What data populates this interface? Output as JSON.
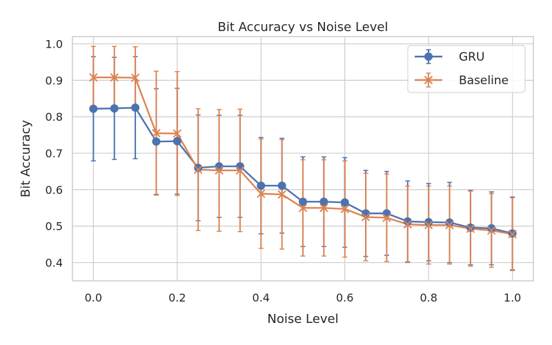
{
  "chart_data": {
    "type": "line",
    "title": "Bit Accuracy vs Noise Level",
    "xlabel": "Noise Level",
    "ylabel": "Bit Accuracy",
    "xlim": [
      -0.05,
      1.05
    ],
    "ylim": [
      0.35,
      1.02
    ],
    "xticks": [
      0.0,
      0.2,
      0.4,
      0.6,
      0.8,
      1.0
    ],
    "xtick_labels": [
      "0.0",
      "0.2",
      "0.4",
      "0.6",
      "0.8",
      "1.0"
    ],
    "yticks": [
      0.4,
      0.5,
      0.6,
      0.7,
      0.8,
      0.9,
      1.0
    ],
    "ytick_labels": [
      "0.4",
      "0.5",
      "0.6",
      "0.7",
      "0.8",
      "0.9",
      "1.0"
    ],
    "grid": true,
    "legend_position": "top-right",
    "x": [
      0.0,
      0.05,
      0.1,
      0.15,
      0.2,
      0.25,
      0.3,
      0.35,
      0.4,
      0.45,
      0.5,
      0.55,
      0.6,
      0.65,
      0.7,
      0.75,
      0.8,
      0.85,
      0.9,
      0.95,
      1.0
    ],
    "series": [
      {
        "name": "GRU",
        "color": "#4c72b0",
        "marker": "circle",
        "values": [
          0.822,
          0.823,
          0.825,
          0.732,
          0.733,
          0.66,
          0.664,
          0.664,
          0.611,
          0.611,
          0.567,
          0.567,
          0.565,
          0.535,
          0.535,
          0.513,
          0.511,
          0.51,
          0.496,
          0.494,
          0.48
        ],
        "yerr": [
          0.143,
          0.14,
          0.14,
          0.145,
          0.145,
          0.145,
          0.14,
          0.14,
          0.132,
          0.13,
          0.123,
          0.123,
          0.123,
          0.118,
          0.115,
          0.111,
          0.106,
          0.11,
          0.102,
          0.1,
          0.1
        ]
      },
      {
        "name": "Baseline",
        "color": "#dd8452",
        "marker": "x",
        "values": [
          0.908,
          0.908,
          0.907,
          0.755,
          0.754,
          0.655,
          0.653,
          0.653,
          0.589,
          0.587,
          0.55,
          0.55,
          0.547,
          0.525,
          0.523,
          0.505,
          0.503,
          0.503,
          0.493,
          0.488,
          0.478
        ],
        "yerr": [
          0.085,
          0.085,
          0.085,
          0.17,
          0.17,
          0.167,
          0.167,
          0.168,
          0.15,
          0.15,
          0.132,
          0.132,
          0.132,
          0.12,
          0.12,
          0.105,
          0.107,
          0.107,
          0.103,
          0.101,
          0.1
        ]
      }
    ]
  }
}
